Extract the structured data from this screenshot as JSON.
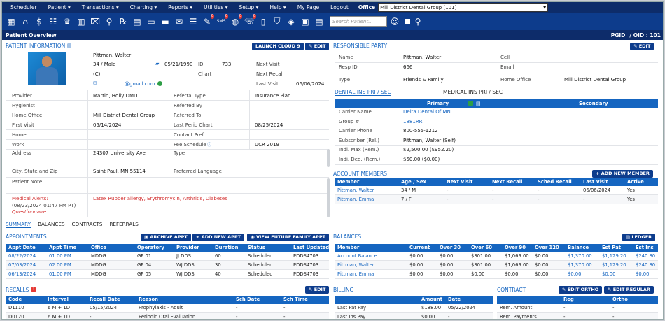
{
  "menu": {
    "items": [
      "Scheduler",
      "Patient ▾",
      "Transactions ▾",
      "Charting ▾",
      "Reports ▾",
      "Utilities ▾",
      "Setup ▾",
      "Help ▾",
      "My Page",
      "Logout"
    ],
    "office_label": "Office",
    "office_value": "Mill District Dental Group [101]"
  },
  "toolbar": {
    "search_placeholder": "Search Patient...",
    "badges": {
      "messages": "0",
      "sms": "0",
      "alerts": "0",
      "tasks": "0"
    }
  },
  "title": {
    "left": "Patient Overview",
    "pgid": "PGID",
    "oid": "/ OID : 101"
  },
  "patient_info": {
    "header": "PATIENT INFORMATION",
    "launch_btn": "LAUNCH CLOUD 9",
    "edit_btn": "✎ EDIT",
    "name": "Pittman, Walter",
    "age_sex": "34 / Male",
    "dob": "05/21/1990",
    "id_label": "ID",
    "id_value": "733",
    "chart_label": "Chart",
    "cell": "(C)",
    "email": "@gmail.com",
    "next_visit_label": "Next Visit",
    "next_recall_label": "Next Recall",
    "last_visit_label": "Last Visit",
    "last_visit_value": "06/06/2024",
    "fields": [
      {
        "l": "Provider",
        "v": "Martin, Holly DMD",
        "l2": "Referral Type",
        "v2": "Insurance Plan"
      },
      {
        "l": "Hygienist",
        "v": "",
        "l2": "Referred By",
        "v2": ""
      },
      {
        "l": "Home Office",
        "v": "Mill District Dental Group",
        "l2": "Referred To",
        "v2": ""
      },
      {
        "l": "First Visit",
        "v": "05/14/2024",
        "l2": "Last Perio Chart",
        "v2": "08/25/2024"
      },
      {
        "l": "Home",
        "v": "",
        "l2": "Contact Pref",
        "v2": ""
      },
      {
        "l": "Work",
        "v": "",
        "l2": "Fee Schedule",
        "v2": "UCR 2019"
      }
    ],
    "address_label": "Address",
    "address": "24307 University Ave",
    "type_label": "Type",
    "city_label": "City, State and Zip",
    "city": "Saint Paul, MN 55114",
    "lang_label": "Preferred Language",
    "note_label": "Patient Note",
    "medical_label": "Medical Alerts:",
    "medical_date": "(08/23/2024 01:47 PM PT)",
    "questionnaire": "Questionnaire",
    "medical_alerts": "Latex Rubber allergy, Erythromycin, Arthritis, Diabetes"
  },
  "tabs": [
    "SUMMARY",
    "BALANCES",
    "CONTRACTS",
    "REFERRALS"
  ],
  "responsible": {
    "header": "RESPONSIBLE PARTY",
    "edit_btn": "✎ EDIT",
    "name_label": "Name",
    "name": "Pittman, Walter",
    "cell_label": "Cell",
    "resp_label": "Resp ID",
    "resp": "666",
    "email_label": "Email",
    "type_label": "Type",
    "type": "Friends & Family",
    "home_label": "Home Office",
    "home": "Mill District Dental Group"
  },
  "insurance": {
    "dental_tab": "DENTAL INS PRI / SEC",
    "medical_tab": "MEDICAL INS PRI / SEC",
    "primary": "Primary",
    "secondary": "Secondary",
    "rows": [
      {
        "l": "Carrier Name",
        "v": "Delta Dental Of MN"
      },
      {
        "l": "Group #",
        "v": "1881RR"
      },
      {
        "l": "Carrier Phone",
        "v": "800-555-1212"
      },
      {
        "l": "Subscriber (Rel.)",
        "v": "Pittman, Walter (Self)"
      },
      {
        "l": "Indi. Max (Rem.)",
        "v": "$2,500.00 ($952.20)"
      },
      {
        "l": "Indi. Ded. (Rem.)",
        "v": "$50.00 ($0.00)"
      }
    ]
  },
  "account": {
    "header": "ACCOUNT MEMBERS",
    "add_btn": "+ ADD NEW MEMBER",
    "cols": [
      "Member",
      "Age / Sex",
      "Next Visit",
      "Next Recall",
      "Sched Recall",
      "Last Visit",
      "Active"
    ],
    "rows": [
      [
        "Pittman, Walter",
        "34 / M",
        "-",
        "-",
        "-",
        "06/06/2024",
        "Yes"
      ],
      [
        "Pittman, Emma",
        "7 / F",
        "-",
        "-",
        "-",
        "-",
        "Yes"
      ]
    ]
  },
  "appointments": {
    "header": "APPOINTMENTS",
    "archive_btn": "ARCHIVE APPT",
    "add_btn": "+ ADD NEW APPT",
    "future_btn": "VIEW FUTURE FAMILY APPT",
    "cols": [
      "Appt Date",
      "Appt Time",
      "Office",
      "Operatory",
      "Provider",
      "Duration",
      "Status",
      "Last Updated"
    ],
    "rows": [
      [
        "08/22/2024",
        "01:00 PM",
        "MDDG",
        "GP 01",
        "JJ DDS",
        "60",
        "Scheduled",
        "PDDS4703"
      ],
      [
        "07/03/2024",
        "02:00 PM",
        "MDDG",
        "GP 04",
        "WJ DDS",
        "30",
        "Scheduled",
        "PDDS4703"
      ],
      [
        "06/13/2024",
        "01:00 PM",
        "MDDG",
        "GP 05",
        "WJ DDS",
        "40",
        "Scheduled",
        "PDDS4703"
      ]
    ]
  },
  "balances": {
    "header": "BALANCES",
    "ledger_btn": "LEDGER",
    "cols": [
      "Member",
      "Current",
      "Over 30",
      "Over 60",
      "Over 90",
      "Over 120",
      "Balance",
      "Est Pat",
      "Est Ins"
    ],
    "rows": [
      [
        "Account Balance",
        "$0.00",
        "$0.00",
        "$301.00",
        "$1,069.00",
        "$0.00",
        "$1,370.00",
        "$1,129.20",
        "$240.80"
      ],
      [
        "Pittman, Walter",
        "$0.00",
        "$0.00",
        "$301.00",
        "$1,069.00",
        "$0.00",
        "$1,370.00",
        "$1,129.20",
        "$240.80"
      ],
      [
        "Pittman, Emma",
        "$0.00",
        "$0.00",
        "$0.00",
        "$0.00",
        "$0.00",
        "$0.00",
        "$0.00",
        "$0.00"
      ]
    ]
  },
  "recalls": {
    "header": "RECALLS",
    "badge": "1",
    "edit_btn": "✎ EDIT",
    "cols": [
      "Code",
      "Interval",
      "Recall Date",
      "Reason",
      "Sch Date",
      "Sch Time"
    ],
    "rows": [
      [
        "D1110",
        "6 M + 1D",
        "05/15/2024",
        "Prophylaxis - Adult",
        "-",
        "-"
      ],
      [
        "D0120",
        "6 M + 1D",
        "-",
        "Periodic Oral Evaluation",
        "-",
        "-"
      ]
    ]
  },
  "billing": {
    "header": "BILLING",
    "cols": [
      "",
      "Amount",
      "Date"
    ],
    "rows": [
      [
        "Last Pat Pay",
        "$188.00",
        "05/22/2024"
      ],
      [
        "Last Ins Pay",
        "$0.00",
        "-"
      ]
    ]
  },
  "contract": {
    "header": "CONTRACT",
    "edit_ortho": "✎ EDIT ORTHO",
    "edit_regular": "✎ EDIT REGULAR",
    "cols": [
      "",
      "Reg",
      "Ortho"
    ],
    "rows": [
      [
        "Rem. Amount",
        "-",
        "-"
      ],
      [
        "Rem. Payments",
        "-",
        "-"
      ]
    ]
  }
}
